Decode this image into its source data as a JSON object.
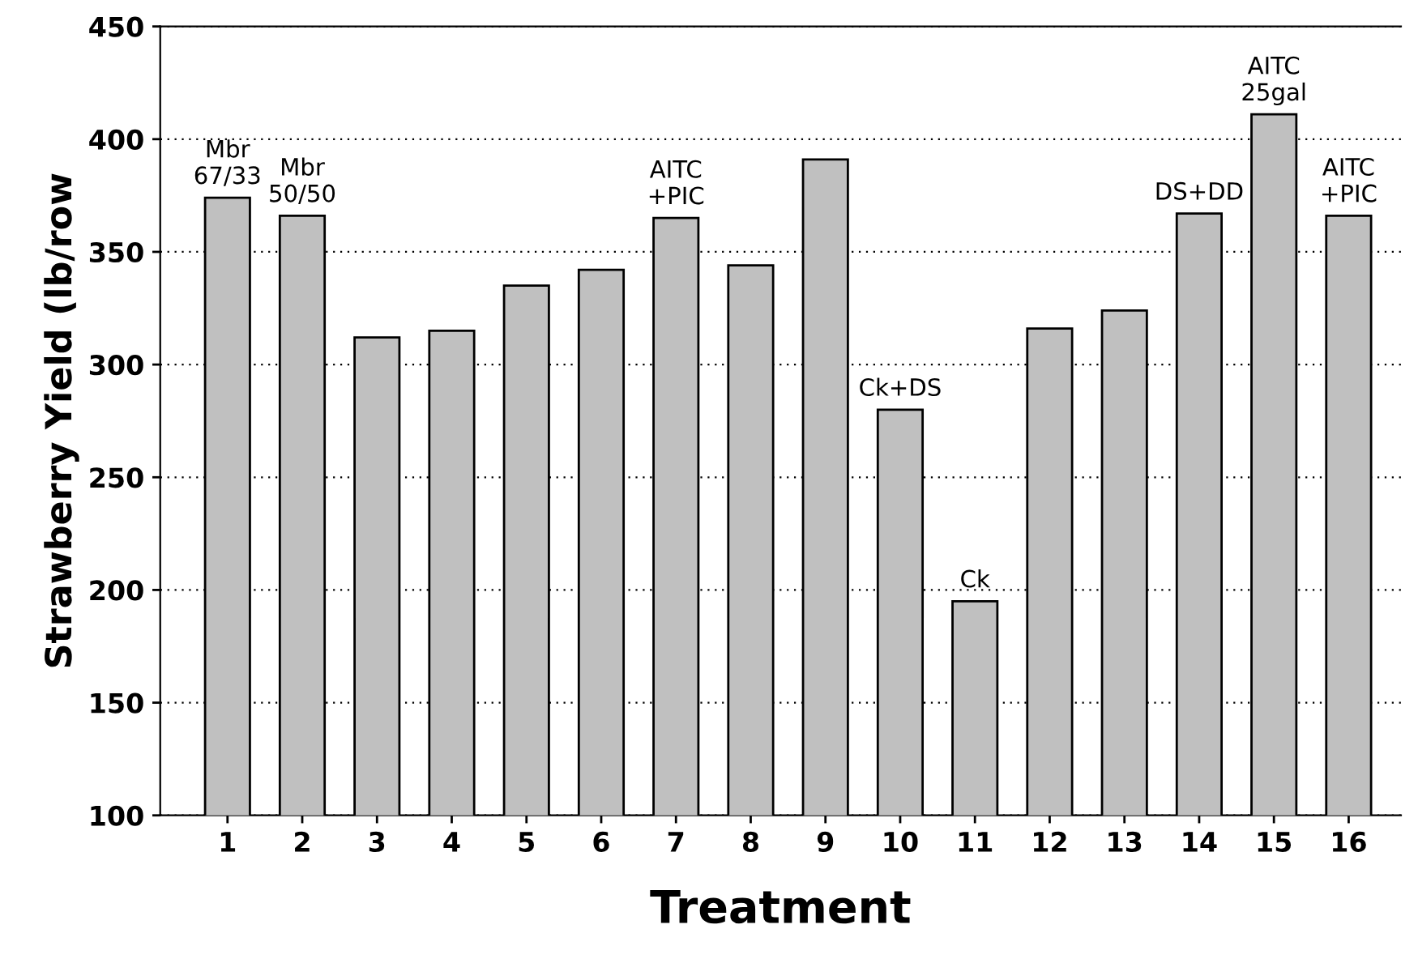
{
  "chart_data": {
    "type": "bar",
    "xlabel": "Treatment",
    "ylabel": "Strawberry Yield (lb/row",
    "categories": [
      "1",
      "2",
      "3",
      "4",
      "5",
      "6",
      "7",
      "8",
      "9",
      "10",
      "11",
      "12",
      "13",
      "14",
      "15",
      "16"
    ],
    "values": [
      374,
      366,
      312,
      315,
      335,
      342,
      365,
      344,
      391,
      280,
      195,
      316,
      324,
      367,
      411,
      366
    ],
    "color": "#c0c0c0",
    "ylim": [
      100,
      450
    ],
    "yticks": [
      100,
      150,
      200,
      250,
      300,
      350,
      400,
      450
    ],
    "grid": "y",
    "annotations": [
      {
        "text": "Mbr\n67/33",
        "x": "1",
        "y": 374
      },
      {
        "text": "Mbr\n50/50",
        "x": "2",
        "y": 366
      },
      {
        "text": "AITC\n+PIC",
        "x": "7",
        "y": 365
      },
      {
        "text": "Ck+DS",
        "x": "10",
        "y": 280
      },
      {
        "text": "Ck",
        "x": "11",
        "y": 195
      },
      {
        "text": "DS+DD",
        "x": "14",
        "y": 367
      },
      {
        "text": "AITC\n25gal",
        "x": "15",
        "y": 411
      },
      {
        "text": "AITC\n+PIC",
        "x": "16",
        "y": 366
      }
    ]
  }
}
